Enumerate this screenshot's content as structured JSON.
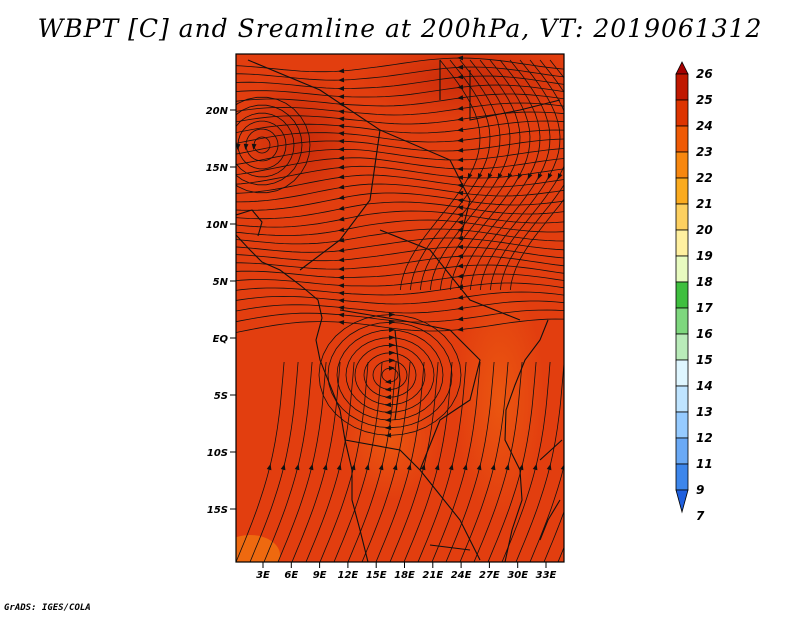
{
  "title": "WBPT [C] and Sreamline at 200hPa, VT: 2019061312",
  "credit": "GrADS: IGES/COLA",
  "map": {
    "lat_labels": [
      "20N",
      "15N",
      "10N",
      "5N",
      "EQ",
      "5S",
      "10S",
      "15S"
    ],
    "lon_labels": [
      "3E",
      "6E",
      "9E",
      "12E",
      "15E",
      "18E",
      "21E",
      "24E",
      "27E",
      "30E",
      "33E"
    ],
    "field_color": "#e23e0f"
  },
  "colorbar": {
    "labels": [
      "26",
      "25",
      "24",
      "23",
      "22",
      "21",
      "20",
      "19",
      "18",
      "17",
      "16",
      "15",
      "14",
      "13",
      "12",
      "11",
      "9",
      "7"
    ],
    "colors": [
      "#a50000",
      "#c01800",
      "#dd3400",
      "#ef5a05",
      "#f7870f",
      "#fbab1f",
      "#fdd060",
      "#fff0a0",
      "#e8fbc0",
      "#3fbf3f",
      "#7ed77e",
      "#b9ebb9",
      "#dff6ff",
      "#bfe4ff",
      "#96cbff",
      "#6aa9f5",
      "#3d86eb",
      "#1f5fdd"
    ]
  }
}
